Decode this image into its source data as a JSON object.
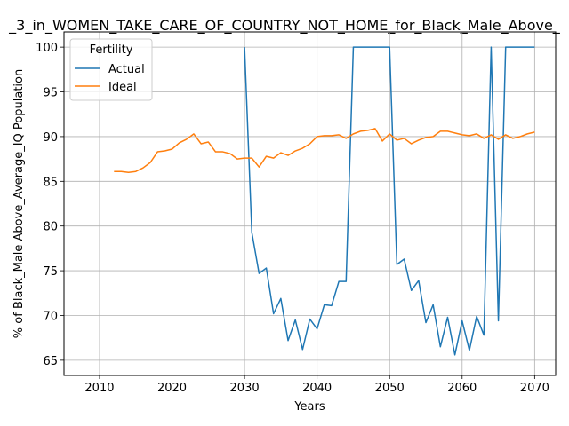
{
  "chart_data": {
    "type": "line",
    "title": "_3_in_WOMEN_TAKE_CARE_OF_COUNTRY_NOT_HOME_for_Black_Male_Above_",
    "xlabel": "Years",
    "ylabel": "% of Black_Male Above_Average_IQ Population",
    "xlim": [
      2005.1,
      2072.9
    ],
    "ylim": [
      63.3,
      101.7
    ],
    "xticks": [
      2010,
      2020,
      2030,
      2040,
      2050,
      2060,
      2070
    ],
    "yticks": [
      65,
      70,
      75,
      80,
      85,
      90,
      95,
      100
    ],
    "grid": true,
    "legend": {
      "title": "Fertility",
      "placement": "top-left"
    },
    "series": [
      {
        "name": "Actual",
        "color": "#1f77b4",
        "x": [
          2030,
          2031,
          2032,
          2033,
          2034,
          2035,
          2036,
          2037,
          2038,
          2039,
          2040,
          2041,
          2042,
          2043,
          2044,
          2045,
          2046,
          2047,
          2048,
          2049,
          2050,
          2051,
          2052,
          2053,
          2054,
          2055,
          2056,
          2057,
          2058,
          2059,
          2060,
          2061,
          2062,
          2063,
          2064,
          2065,
          2066,
          2067,
          2068,
          2069,
          2070
        ],
        "y": [
          100,
          79.3,
          74.7,
          75.3,
          70.2,
          71.9,
          67.2,
          69.5,
          66.2,
          69.6,
          68.5,
          71.2,
          71.1,
          73.8,
          73.8,
          100,
          100,
          100,
          100,
          100,
          100,
          75.7,
          76.3,
          72.8,
          73.9,
          69.2,
          71.2,
          66.5,
          69.8,
          65.6,
          69.4,
          66.1,
          69.9,
          67.8,
          100,
          69.4,
          100,
          100,
          100,
          100,
          100
        ]
      },
      {
        "name": "Ideal",
        "color": "#ff7f0e",
        "x": [
          2012,
          2013,
          2014,
          2015,
          2016,
          2017,
          2018,
          2019,
          2020,
          2021,
          2022,
          2023,
          2024,
          2025,
          2026,
          2027,
          2028,
          2029,
          2030,
          2031,
          2032,
          2033,
          2034,
          2035,
          2036,
          2037,
          2038,
          2039,
          2040,
          2041,
          2042,
          2043,
          2044,
          2045,
          2046,
          2047,
          2048,
          2049,
          2050,
          2051,
          2052,
          2053,
          2054,
          2055,
          2056,
          2057,
          2058,
          2059,
          2060,
          2061,
          2062,
          2063,
          2064,
          2065,
          2066,
          2067,
          2068,
          2069,
          2070
        ],
        "y": [
          86.1,
          86.1,
          86.0,
          86.1,
          86.5,
          87.1,
          88.3,
          88.4,
          88.6,
          89.3,
          89.7,
          90.3,
          89.2,
          89.4,
          88.3,
          88.3,
          88.1,
          87.5,
          87.6,
          87.6,
          86.6,
          87.8,
          87.6,
          88.2,
          87.9,
          88.4,
          88.7,
          89.2,
          90.0,
          90.1,
          90.1,
          90.2,
          89.8,
          90.3,
          90.6,
          90.7,
          90.9,
          89.5,
          90.3,
          89.6,
          89.8,
          89.2,
          89.6,
          89.9,
          90.0,
          90.6,
          90.6,
          90.4,
          90.2,
          90.1,
          90.3,
          89.8,
          90.2,
          89.7,
          90.2,
          89.8,
          90.0,
          90.3,
          90.5
        ]
      }
    ]
  }
}
